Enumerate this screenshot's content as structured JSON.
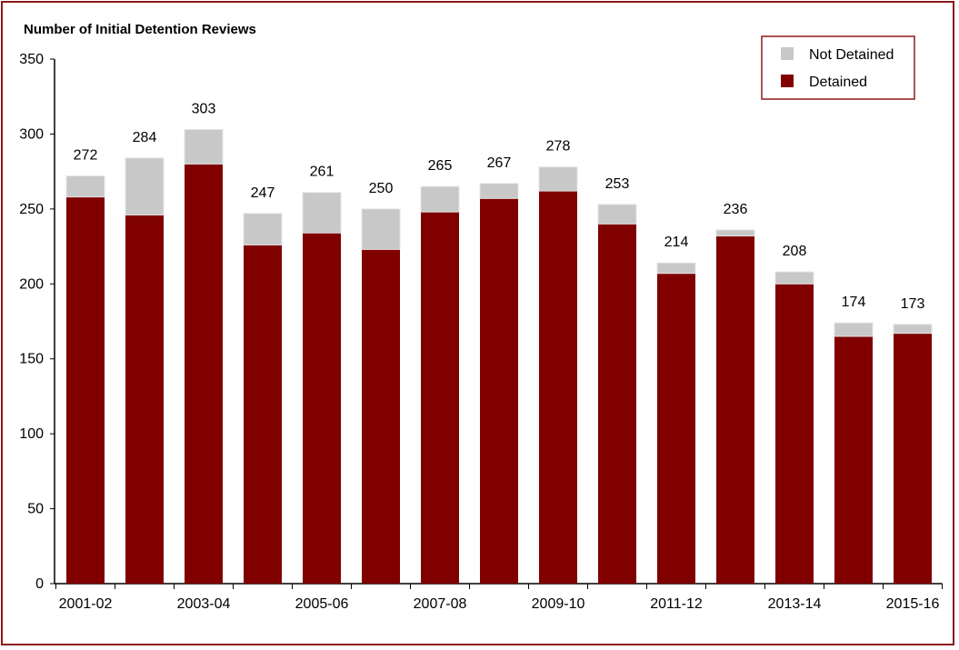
{
  "chart_data": {
    "type": "bar",
    "stacked": true,
    "title": "Number of Initial Detention Reviews",
    "xlabel": "",
    "ylabel": "",
    "ylim": [
      0,
      350
    ],
    "yticks": [
      0,
      50,
      100,
      150,
      200,
      250,
      300,
      350
    ],
    "categories": [
      "2001-02",
      "",
      "2003-04",
      "",
      "2005-06",
      "",
      "2007-08",
      "",
      "2009-10",
      "",
      "2011-12",
      "",
      "2013-14",
      "",
      "2015-16"
    ],
    "totals": [
      272,
      284,
      303,
      247,
      261,
      250,
      265,
      267,
      278,
      253,
      214,
      236,
      208,
      174,
      173
    ],
    "series": [
      {
        "name": "Detained",
        "color": "#800000",
        "values": [
          258,
          246,
          280,
          226,
          234,
          223,
          248,
          257,
          262,
          240,
          207,
          232,
          200,
          165,
          167
        ]
      },
      {
        "name": "Not Detained",
        "color": "#c8c8c8",
        "values": [
          14,
          38,
          23,
          21,
          27,
          27,
          17,
          10,
          16,
          13,
          7,
          4,
          8,
          9,
          6
        ]
      }
    ],
    "legend_position": "top-right",
    "grid": false,
    "frame_color": "#8b1a1a"
  }
}
